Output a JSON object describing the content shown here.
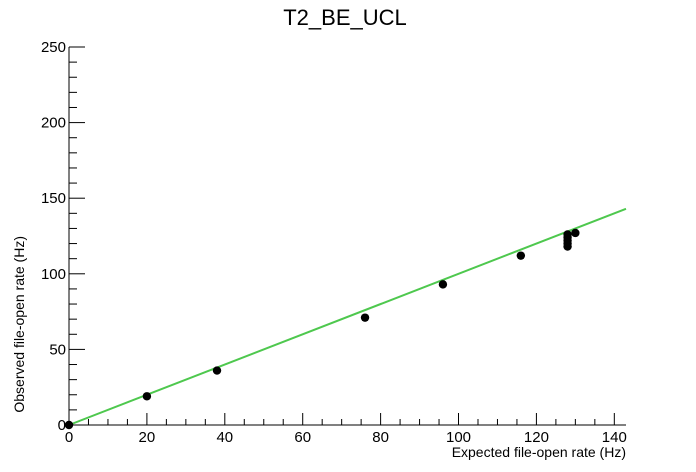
{
  "chart_data": {
    "type": "scatter",
    "title": "T2_BE_UCL",
    "xlabel": "Expected file-open rate (Hz)",
    "ylabel": "Observed file-open rate (Hz)",
    "xlim": [
      0,
      143
    ],
    "ylim": [
      0,
      250
    ],
    "x_ticks": [
      0,
      20,
      40,
      60,
      80,
      100,
      120,
      140
    ],
    "y_ticks": [
      0,
      50,
      100,
      150,
      200,
      250
    ],
    "grid": false,
    "series": [
      {
        "points": [
          {
            "x": 0,
            "y": 0
          },
          {
            "x": 20,
            "y": 19
          },
          {
            "x": 38,
            "y": 36
          },
          {
            "x": 76,
            "y": 71
          },
          {
            "x": 96,
            "y": 93
          },
          {
            "x": 116,
            "y": 112
          },
          {
            "x": 128,
            "y": 118
          },
          {
            "x": 128,
            "y": 120
          },
          {
            "x": 128,
            "y": 122
          },
          {
            "x": 128,
            "y": 124
          },
          {
            "x": 128,
            "y": 126
          },
          {
            "x": 130,
            "y": 127
          }
        ],
        "color": "#000000"
      }
    ],
    "fit_line": {
      "x": [
        0,
        143
      ],
      "y": [
        0,
        143
      ],
      "color": "#4ec84e"
    }
  }
}
